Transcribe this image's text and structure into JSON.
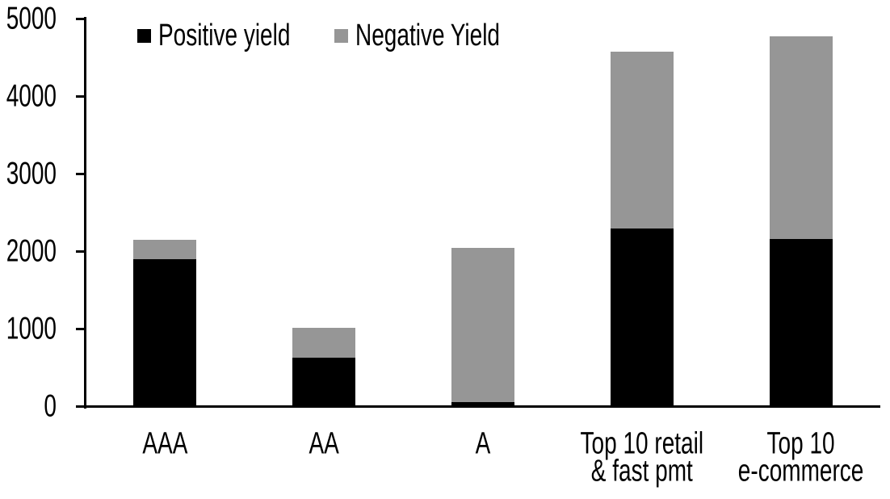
{
  "chart_data": {
    "type": "bar",
    "stacked": true,
    "title": "",
    "xlabel": "",
    "ylabel": "",
    "categories": [
      "AAA",
      "AA",
      "A",
      "Top 10 retail\n& fast pmt",
      "Top 10\ne-commerce"
    ],
    "series": [
      {
        "name": "Positive yield",
        "color": "#000000",
        "values": [
          1900,
          630,
          50,
          2290,
          2160
        ]
      },
      {
        "name": "Negative Yield",
        "color": "#969696",
        "values": [
          250,
          380,
          1990,
          2280,
          2610
        ]
      }
    ],
    "stack_totals": [
      2150,
      1010,
      2040,
      4570,
      4770
    ],
    "ylim": [
      0,
      5000
    ],
    "ytick_step": 1000,
    "ytick_labels": [
      "0",
      "1000",
      "2000",
      "3000",
      "4000",
      "5000"
    ],
    "grid": false,
    "legend_position": "top",
    "background_color": "#ffffff",
    "axis_color": "#000000"
  }
}
